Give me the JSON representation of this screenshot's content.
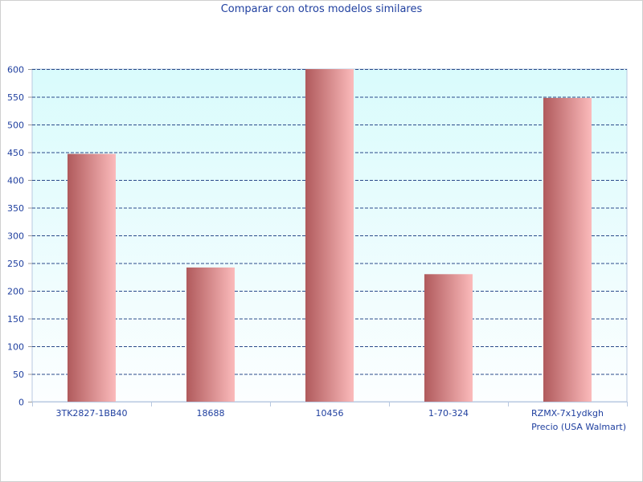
{
  "chart_data": {
    "type": "bar",
    "title": "Comparar con otros modelos similares",
    "xlabel": "Precio (USA Walmart)",
    "ylabel": "",
    "categories": [
      "3TK2827-1BB40",
      "18688",
      "10456",
      "1-70-324",
      "RZMX-7x1ydkgh"
    ],
    "values": [
      447,
      242,
      600,
      230,
      548
    ],
    "ylim": [
      0,
      600
    ],
    "yticks": [
      0,
      50,
      100,
      150,
      200,
      250,
      300,
      350,
      400,
      450,
      500,
      550,
      600
    ],
    "grid": true,
    "colors": {
      "bar_dark": "#b05a5c",
      "bar_light": "#fbbabb",
      "plot_bg_top": "#d9fbfc",
      "plot_bg_bottom": "#fcfeff",
      "grid": "#2a4a8a",
      "text": "#1f3f9f",
      "axis": "#b8c8e0"
    }
  }
}
